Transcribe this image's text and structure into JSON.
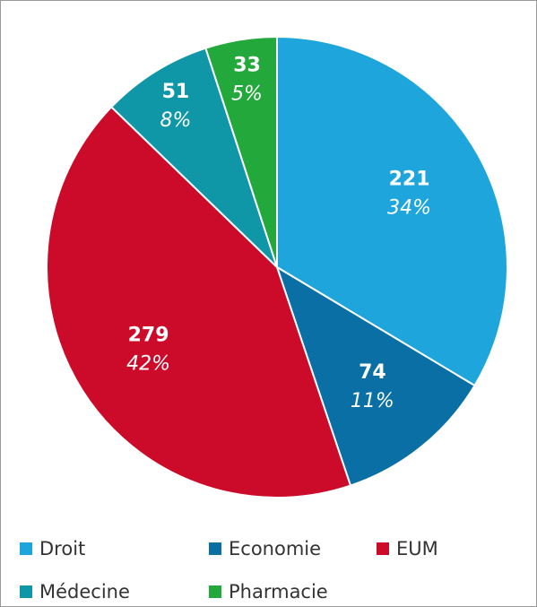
{
  "chart_data": {
    "type": "pie",
    "categories": [
      "Droit",
      "Economie",
      "EUM",
      "Médecine",
      "Pharmacie"
    ],
    "values": [
      221,
      74,
      279,
      51,
      33
    ],
    "percent_labels": [
      "34%",
      "11%",
      "42%",
      "8%",
      "5%"
    ],
    "colors": [
      "#1ea6dc",
      "#0a6fa5",
      "#cc0a2a",
      "#0f97a8",
      "#23a83c"
    ],
    "legend": "bottom"
  }
}
